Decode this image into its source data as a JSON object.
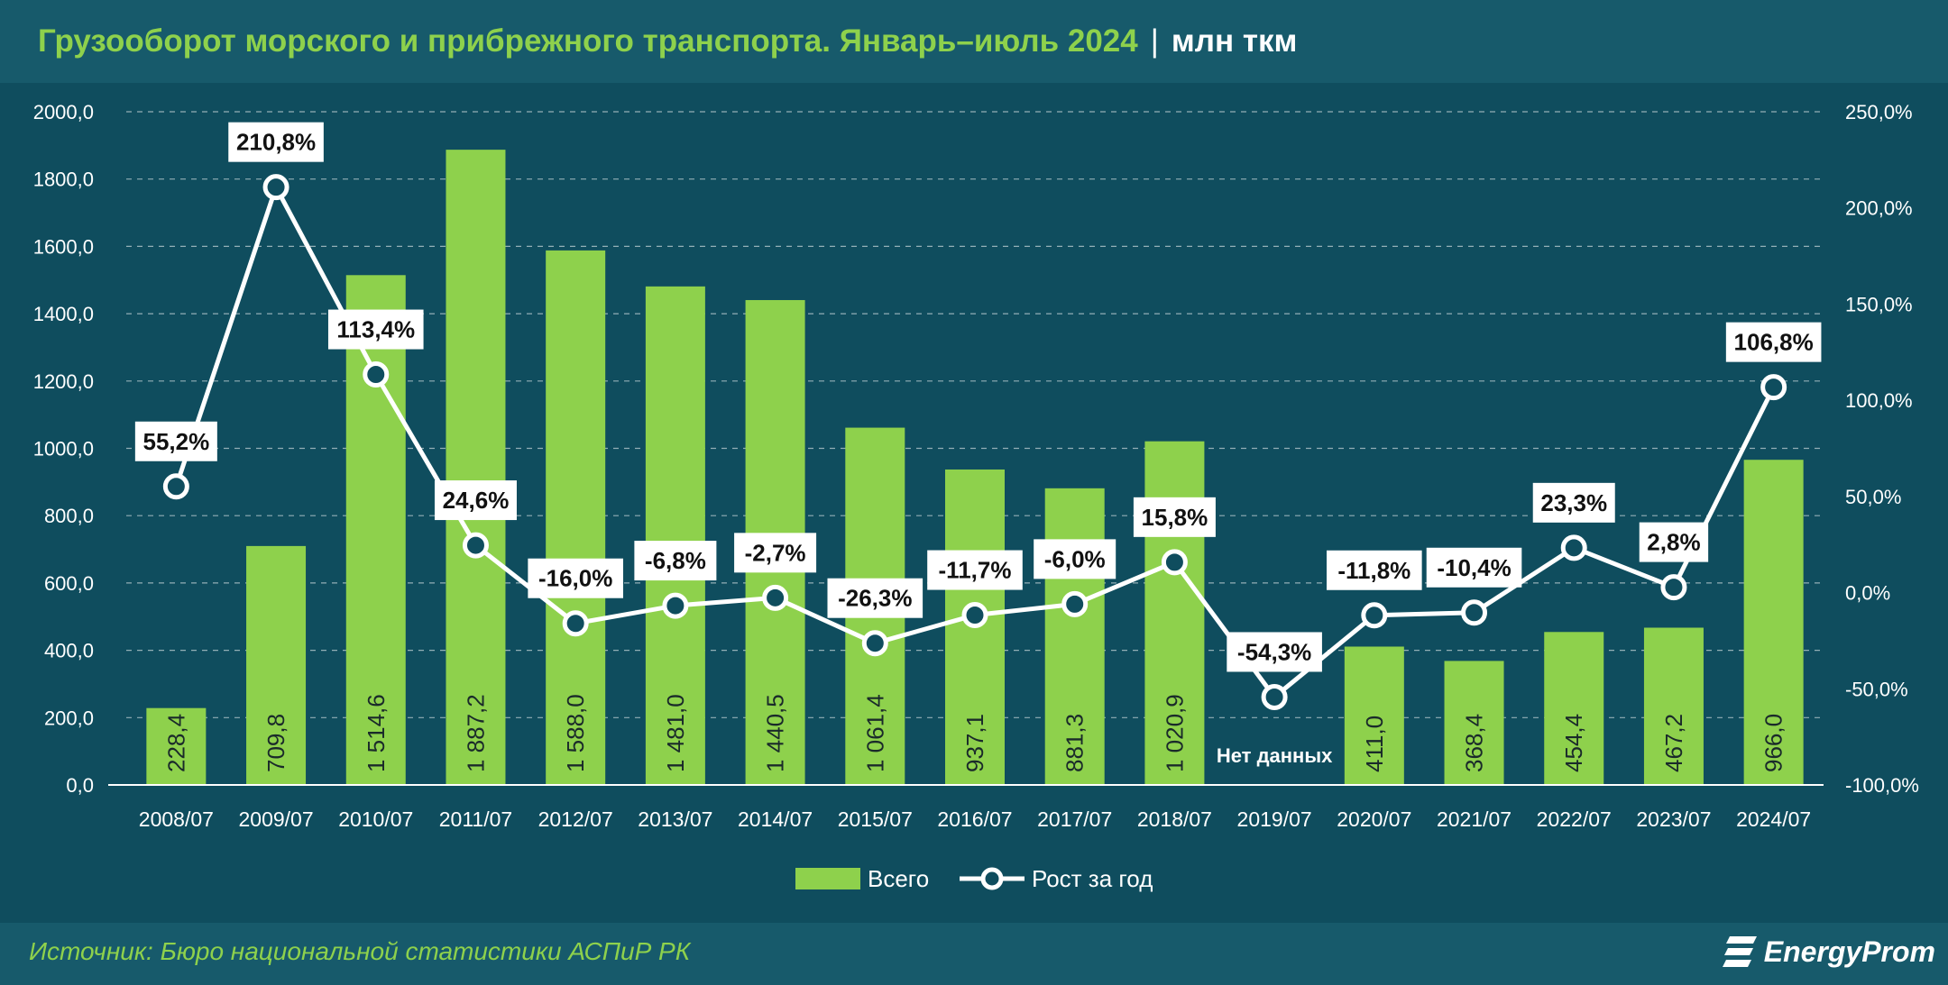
{
  "header": {
    "title": "Грузооборот морского и прибрежного транспорта. Январь–июль 2024",
    "separator": "|",
    "unit": "млн ткм"
  },
  "footer": {
    "source": "Источник: Бюро национальной статистики АСПиР РК",
    "brand": "EnergyProm",
    "brand_icon": "energyprom-logo-icon"
  },
  "colors": {
    "background": "#0f4d5e",
    "header": "#175a6b",
    "bar": "#8ed14c",
    "line": "#ffffff"
  },
  "chart_data": {
    "type": "bar",
    "categories": [
      "2008/07",
      "2009/07",
      "2010/07",
      "2011/07",
      "2012/07",
      "2013/07",
      "2014/07",
      "2015/07",
      "2016/07",
      "2017/07",
      "2018/07",
      "2019/07",
      "2020/07",
      "2021/07",
      "2022/07",
      "2023/07",
      "2024/07"
    ],
    "series": [
      {
        "name": "Всего",
        "type": "bar",
        "axis": "left",
        "values": [
          228.4,
          709.8,
          1514.6,
          1887.2,
          1588.0,
          1481.0,
          1440.5,
          1061.4,
          937.1,
          881.3,
          1020.9,
          null,
          411.0,
          368.4,
          454.4,
          467.2,
          966.0
        ],
        "labels": [
          "228,4",
          "709,8",
          "1 514,6",
          "1 887,2",
          "1 588,0",
          "1 481,0",
          "1 440,5",
          "1 061,4",
          "937,1",
          "881,3",
          "1 020,9",
          "",
          "411,0",
          "368,4",
          "454,4",
          "467,2",
          "966,0"
        ]
      },
      {
        "name": "Рост за год",
        "type": "line",
        "axis": "right",
        "values": [
          55.2,
          210.8,
          113.4,
          24.6,
          -16.0,
          -6.8,
          -2.7,
          -26.3,
          -11.7,
          -6.0,
          15.8,
          -54.3,
          -11.8,
          -10.4,
          23.3,
          2.8,
          106.8
        ],
        "labels": [
          "55,2%",
          "210,8%",
          "113,4%",
          "24,6%",
          "-16,0%",
          "-6,8%",
          "-2,7%",
          "-26,3%",
          "-11,7%",
          "-6,0%",
          "15,8%",
          "-54,3%",
          "-11,8%",
          "-10,4%",
          "23,3%",
          "2,8%",
          "106,8%"
        ]
      }
    ],
    "no_data_label": "Нет данных",
    "no_data_index": 11,
    "y_left": {
      "min": 0,
      "max": 2000,
      "step": 200,
      "tick_labels": [
        "0,0",
        "200,0",
        "400,0",
        "600,0",
        "800,0",
        "1000,0",
        "1200,0",
        "1400,0",
        "1600,0",
        "1800,0",
        "2000,0"
      ]
    },
    "y_right": {
      "min": -100,
      "max": 250,
      "step": 50,
      "tick_labels": [
        "-100,0%",
        "-50,0%",
        "0,0%",
        "50,0%",
        "100,0%",
        "150,0%",
        "200,0%",
        "250,0%"
      ]
    },
    "grid": true,
    "legend_position": "bottom-center"
  }
}
